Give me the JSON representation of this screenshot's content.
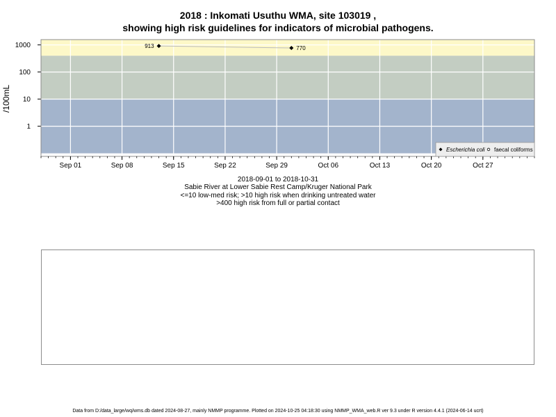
{
  "title_line1": "2018 : Inkomati Usuthu WMA, site 103019 ,",
  "title_line2": "showing high risk guidelines for indicators of microbial pathogens.",
  "subtitle_lines": [
    "2018-09-01 to 2018-10-31",
    "Sabie River at Lower Sabie Rest Camp/Kruger National Park",
    "<=10 low-med risk; >10 high risk when drinking untreated water",
    ">400 high risk from full or partial contact"
  ],
  "footer": "Data from D:/data_large/wq/wms.db dated 2024-08-27, mainly NMMP programme. Plotted on 2024-10-25 04:18:30 using NMMP_WMA_web.R ver 9.3 under R version 4.4.1 (2024-06-14 ucrt)",
  "colors": {
    "band_low": "#a3b4cc",
    "band_mid": "#c3cdc2",
    "band_high": "#fdf8c8",
    "grid": "#ffffff",
    "marker": "#000000",
    "line": "#bbbbbb"
  },
  "chart_data": {
    "type": "scatter",
    "ylabel": "/100mL",
    "yscale": "log",
    "yticks": [
      1,
      10,
      100,
      1000
    ],
    "ytick_labels": [
      "1",
      "10",
      "100",
      "1000"
    ],
    "xticks": [
      "2018-09-01",
      "2018-09-08",
      "2018-09-15",
      "2018-09-22",
      "2018-09-29",
      "2018-10-06",
      "2018-10-13",
      "2018-10-20",
      "2018-10-27"
    ],
    "xtick_labels": [
      "Sep 01",
      "Sep 08",
      "Sep 15",
      "Sep 22",
      "Sep 29",
      "Oct 06",
      "Oct 13",
      "Oct 20",
      "Oct 27"
    ],
    "xlim": [
      "2018-08-28",
      "2018-11-03"
    ],
    "grid": true,
    "bands": [
      {
        "from": 0.1,
        "to": 10,
        "color_key": "band_low"
      },
      {
        "from": 10,
        "to": 400,
        "color_key": "band_mid"
      },
      {
        "from": 400,
        "to": 2000,
        "color_key": "band_high"
      }
    ],
    "legend_position": "bottom-right",
    "series": [
      {
        "name": "Escherichia coli",
        "marker": "diamond",
        "points": [
          {
            "x": "2018-09-13",
            "y": 913,
            "label": "913"
          },
          {
            "x": "2018-10-01",
            "y": 770,
            "label": "770"
          }
        ]
      },
      {
        "name": "faecal coliforms",
        "marker": "open-circle",
        "points": []
      }
    ]
  }
}
